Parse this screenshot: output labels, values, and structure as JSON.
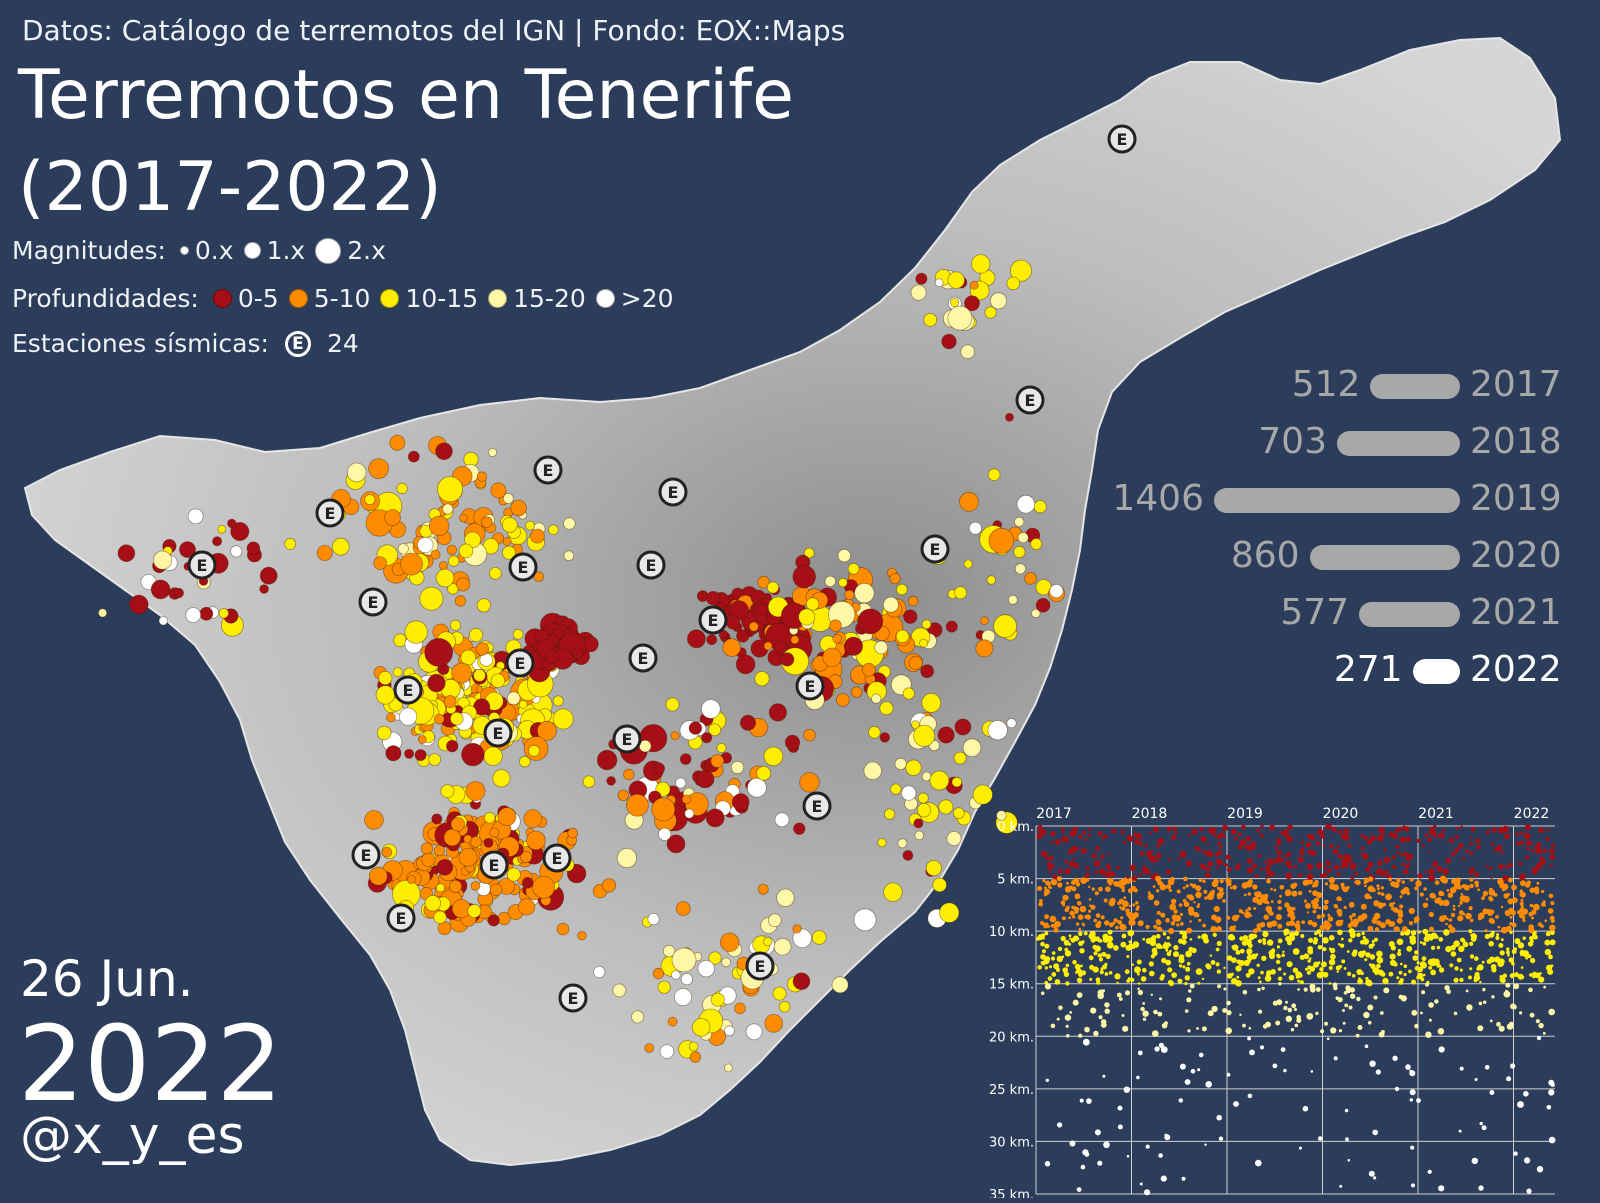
{
  "source_line": "Datos: Catálogo de terremotos del IGN | Fondo: EOX::Maps",
  "title_line1": "Terremotos en Tenerife",
  "title_line2": "(2017-2022)",
  "legend": {
    "magnitudes_label": "Magnitudes:",
    "magnitudes": [
      "0.x",
      "1.x",
      "2.x"
    ],
    "depths_label": "Profundidades:",
    "depths": [
      {
        "label": "0-5",
        "color": "#a50f15"
      },
      {
        "label": "5-10",
        "color": "#ff8c00"
      },
      {
        "label": "10-15",
        "color": "#ffee00"
      },
      {
        "label": "15-20",
        "color": "#fff7a8"
      },
      {
        "label": ">20",
        "color": "#ffffff"
      }
    ],
    "stations_label": "Estaciones sísmicas:",
    "station_symbol": "E",
    "station_count": "24"
  },
  "date": {
    "day": "26 Jun.",
    "year": "2022"
  },
  "credit": "@x_y_es",
  "yearly_counts": [
    {
      "count": 512,
      "year": "2017"
    },
    {
      "count": 703,
      "year": "2018"
    },
    {
      "count": 1406,
      "year": "2019"
    },
    {
      "count": 860,
      "year": "2020"
    },
    {
      "count": 577,
      "year": "2021"
    },
    {
      "count": 271,
      "year": "2022",
      "current": true
    }
  ],
  "depth_chart": {
    "x_ticks": [
      "2017",
      "2018",
      "2019",
      "2020",
      "2021",
      "2022"
    ],
    "y_ticks": [
      "0 km.",
      "5 km.",
      "10 km.",
      "15 km.",
      "20 km.",
      "25 km.",
      "30 km.",
      "35 km."
    ],
    "y_range_km": [
      0,
      35
    ]
  },
  "colors": {
    "background": "#2b3d5b",
    "island": "#c9c9c9",
    "bar": "#a8a8a8",
    "bar_current": "#ffffff"
  }
}
